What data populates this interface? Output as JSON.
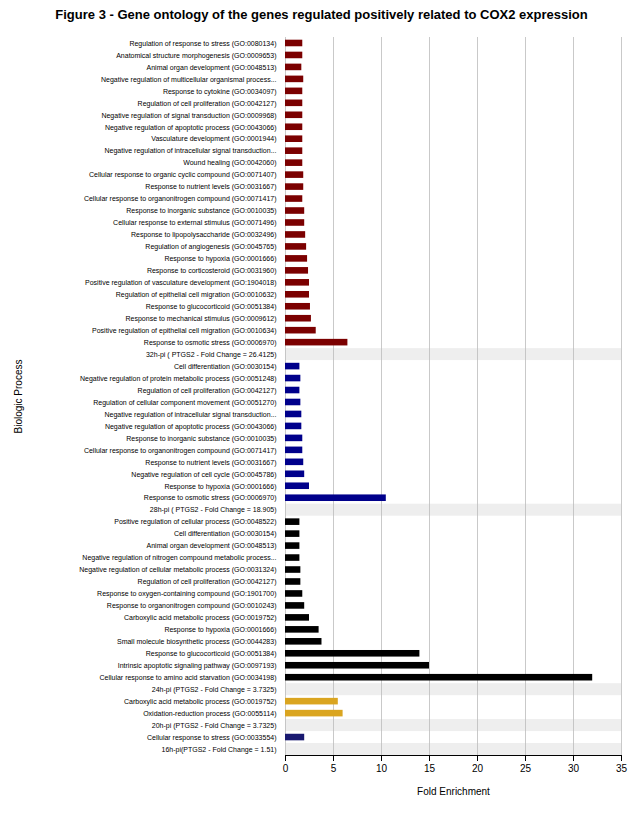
{
  "chart_data": {
    "type": "bar",
    "orientation": "horizontal",
    "title": "Figure 3 - Gene ontology of the genes regulated positively related to COX2 expression",
    "xlabel": "Fold Enrichment",
    "ylabel": "Biologic Process",
    "xlim": [
      0,
      35
    ],
    "xticks": [
      0,
      5,
      10,
      15,
      20,
      25,
      30,
      35
    ],
    "grid": true,
    "categories": [
      "Regulation of response to stress (GO:0080134)",
      "Anatomical structure morphogenesis (GO:0009653)",
      "Animal organ development (GO:0048513)",
      "Negative regulation of multicellular organismal process...",
      "Response to cytokine (GO:0034097)",
      "Regulation of cell proliferation (GO:0042127)",
      "Negative regulation of signal transduction (GO:0009968)",
      "Negative regulation of apoptotic process (GO:0043066)",
      "Vasculature development (GO:0001944)",
      "Negative regulation of intracellular signal transduction...",
      "Wound healing (GO:0042060)",
      "Cellular response to organic cyclic compound (GO:0071407)",
      "Response to nutrient levels (GO:0031667)",
      "Cellular response to organonitrogen compound (GO:0071417)",
      "Response to inorganic substance (GO:0010035)",
      "Cellular response to external stimulus (GO:0071496)",
      "Response to lipopolysaccharide (GO:0032496)",
      "Regulation of angiogenesis (GO:0045765)",
      "Response to hypoxia (GO:0001666)",
      "Response to corticosteroid (GO:0031960)",
      "Positive regulation of vasculature development (GO:1904018)",
      "Regulation of epithelial cell migration (GO:0010632)",
      "Response to glucocorticoid (GO:0051384)",
      "Response to mechanical stimulus (GO:0009612)",
      "Positive regulation of epithelial cell migration (GO:0010634)",
      "Response to osmotic stress (GO:0006970)",
      "32h-pi ( PTGS2 - Fold Change = 26.4125)",
      "Cell differentiation (GO:0030154)",
      "Negative regulation of protein metabolic process (GO:0051248)",
      "Regulation of cell proliferation (GO:0042127)",
      "Regulation of cellular component movement (GO:0051270)",
      "Negative regulation of intracellular signal transduction...",
      "Negative regulation of apoptotic process (GO:0043066)",
      "Response to inorganic substance (GO:0010035)",
      "Cellular response to organonitrogen compound (GO:0071417)",
      "Response to nutrient levels (GO:0031667)",
      "Negative regulation of cell cycle (GO:0045786)",
      "Response to hypoxia (GO:0001666)",
      "Response to osmotic stress (GO:0006970)",
      "28h-pi ( PTGS2 - Fold Change = 18.905)",
      "Positive regulation of cellular process (GO:0048522)",
      "Cell differentiation (GO:0030154)",
      "Animal organ development (GO:0048513)",
      "Negative regulation of nitrogen compound metabolic process...",
      "Negative regulation of cellular metabolic process (GO:0031324)",
      "Regulation of cell proliferation (GO:0042127)",
      "Response to oxygen-containing compound (GO:1901700)",
      "Response to organonitrogen compound (GO:0010243)",
      "Carboxylic acid metabolic process (GO:0019752)",
      "Response to hypoxia (GO:0001666)",
      "Small molecule biosynthetic process (GO:0044283)",
      "Response to glucocorticoid (GO:0051384)",
      "Intrinsic apoptotic signaling pathway (GO:0097193)",
      "Cellular response to amino acid starvation (GO:0034198)",
      "24h-pi (PTGS2 - Fold Change = 3.7325)",
      "Carboxylic acid metabolic process (GO:0019752)",
      "Oxidation-reduction process (GO:0055114)",
      "20h-pi (PTGS2 - Fold Change = 3.7325)",
      "Cellular response to stress (GO:0033554)",
      "16h-pi(PTGS2 - Fold Change = 1.51)"
    ],
    "values": [
      1.8,
      1.8,
      1.7,
      1.9,
      1.8,
      1.8,
      1.8,
      1.8,
      1.8,
      1.8,
      1.8,
      1.9,
      1.9,
      1.8,
      2.0,
      2.0,
      2.1,
      2.2,
      2.3,
      2.4,
      2.5,
      2.5,
      2.6,
      2.7,
      3.2,
      6.5,
      0,
      1.5,
      1.6,
      1.5,
      1.6,
      1.7,
      1.7,
      1.8,
      1.8,
      1.9,
      2.0,
      2.5,
      10.5,
      0,
      1.5,
      1.5,
      1.5,
      1.5,
      1.6,
      1.6,
      1.8,
      2.0,
      2.5,
      3.5,
      3.8,
      14.0,
      15.0,
      32.0,
      0,
      5.5,
      6.0,
      0,
      2.0,
      0
    ],
    "colors": [
      "#7B0000",
      "#7B0000",
      "#7B0000",
      "#7B0000",
      "#7B0000",
      "#7B0000",
      "#7B0000",
      "#7B0000",
      "#7B0000",
      "#7B0000",
      "#7B0000",
      "#7B0000",
      "#7B0000",
      "#7B0000",
      "#7B0000",
      "#7B0000",
      "#7B0000",
      "#7B0000",
      "#7B0000",
      "#7B0000",
      "#7B0000",
      "#7B0000",
      "#7B0000",
      "#7B0000",
      "#7B0000",
      "#7B0000",
      "#7B0000",
      "#00008B",
      "#00008B",
      "#00008B",
      "#00008B",
      "#00008B",
      "#00008B",
      "#00008B",
      "#00008B",
      "#00008B",
      "#00008B",
      "#00008B",
      "#00008B",
      "#00008B",
      "#000000",
      "#000000",
      "#000000",
      "#000000",
      "#000000",
      "#000000",
      "#000000",
      "#000000",
      "#000000",
      "#000000",
      "#000000",
      "#000000",
      "#000000",
      "#000000",
      "#000000",
      "#DAA520",
      "#DAA520",
      "#DAA520",
      "#191970",
      "#191970"
    ]
  }
}
